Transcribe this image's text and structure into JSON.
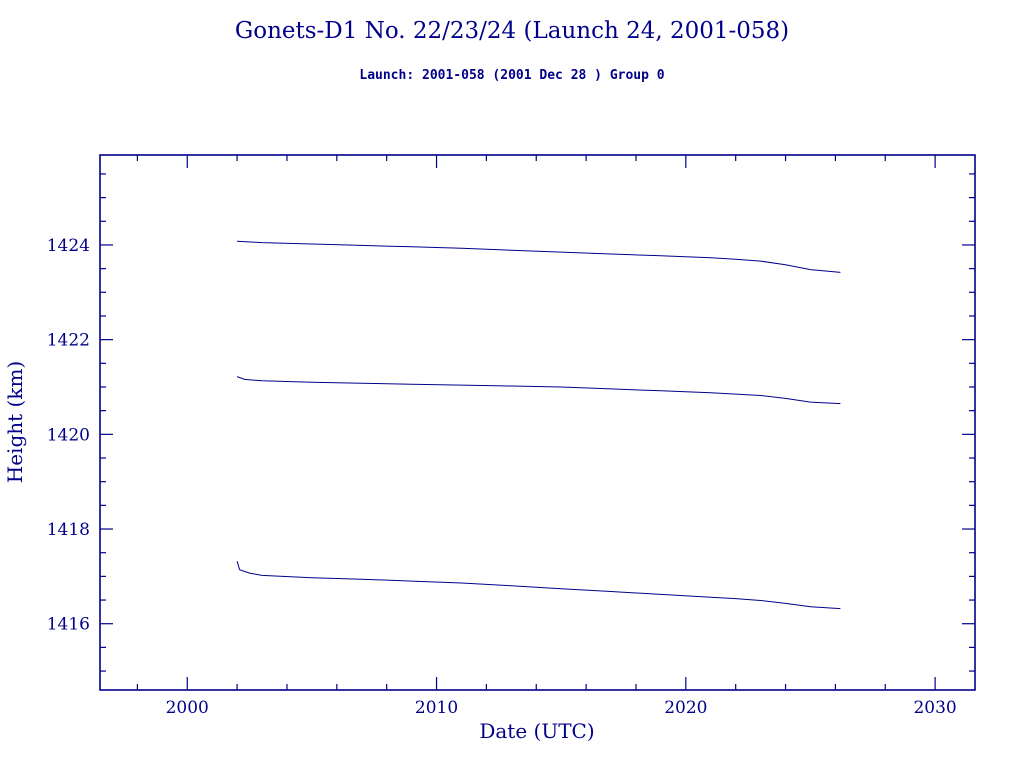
{
  "header": {
    "title": "Gonets-D1 No. 22/23/24 (Launch 24, 2001-058)",
    "subtitle": "Launch: 2001-058  (2001 Dec 28 )  Group 0"
  },
  "colors": {
    "accent": "#00008B",
    "line": "#00008B",
    "background": "#FFFFFF"
  },
  "chart_data": {
    "type": "line",
    "title": "Gonets-D1 No. 22/23/24 (Launch 24, 2001-058)",
    "subtitle": "Launch: 2001-058  (2001 Dec 28 )  Group 0",
    "xlabel": "Date (UTC)",
    "ylabel": "Height (km)",
    "xlim": [
      1996.5,
      2031.6
    ],
    "ylim": [
      1414.6,
      1425.9
    ],
    "x_major_ticks": [
      2000,
      2010,
      2020,
      2030
    ],
    "x_minor_step": 2,
    "y_major_ticks": [
      1416,
      1418,
      1420,
      1422,
      1424
    ],
    "y_minor_step": 0.5,
    "grid": false,
    "legend": "none",
    "series": [
      {
        "name": "upper-line",
        "points": [
          [
            2002.0,
            1424.08
          ],
          [
            2003,
            1424.05
          ],
          [
            2005,
            1424.02
          ],
          [
            2007,
            1423.99
          ],
          [
            2009,
            1423.96
          ],
          [
            2011,
            1423.93
          ],
          [
            2013,
            1423.89
          ],
          [
            2015,
            1423.85
          ],
          [
            2017,
            1423.81
          ],
          [
            2019,
            1423.77
          ],
          [
            2021,
            1423.73
          ],
          [
            2022,
            1423.7
          ],
          [
            2023,
            1423.66
          ],
          [
            2024,
            1423.58
          ],
          [
            2025,
            1423.48
          ],
          [
            2026.2,
            1423.42
          ]
        ]
      },
      {
        "name": "middle-line",
        "points": [
          [
            2002.0,
            1421.22
          ],
          [
            2002.3,
            1421.16
          ],
          [
            2003,
            1421.13
          ],
          [
            2005,
            1421.1
          ],
          [
            2007,
            1421.08
          ],
          [
            2009,
            1421.06
          ],
          [
            2011,
            1421.04
          ],
          [
            2013,
            1421.02
          ],
          [
            2015,
            1421.0
          ],
          [
            2017,
            1420.96
          ],
          [
            2019,
            1420.92
          ],
          [
            2021,
            1420.88
          ],
          [
            2022,
            1420.85
          ],
          [
            2023,
            1420.82
          ],
          [
            2024,
            1420.76
          ],
          [
            2025,
            1420.68
          ],
          [
            2026.2,
            1420.65
          ]
        ]
      },
      {
        "name": "lower-line",
        "points": [
          [
            2002.0,
            1417.32
          ],
          [
            2002.1,
            1417.14
          ],
          [
            2002.5,
            1417.07
          ],
          [
            2003,
            1417.02
          ],
          [
            2005,
            1416.97
          ],
          [
            2007,
            1416.94
          ],
          [
            2009,
            1416.9
          ],
          [
            2011,
            1416.86
          ],
          [
            2013,
            1416.8
          ],
          [
            2015,
            1416.74
          ],
          [
            2017,
            1416.68
          ],
          [
            2019,
            1416.62
          ],
          [
            2021,
            1416.56
          ],
          [
            2022,
            1416.53
          ],
          [
            2023,
            1416.49
          ],
          [
            2024,
            1416.43
          ],
          [
            2025,
            1416.36
          ],
          [
            2026.2,
            1416.32
          ]
        ]
      }
    ]
  }
}
